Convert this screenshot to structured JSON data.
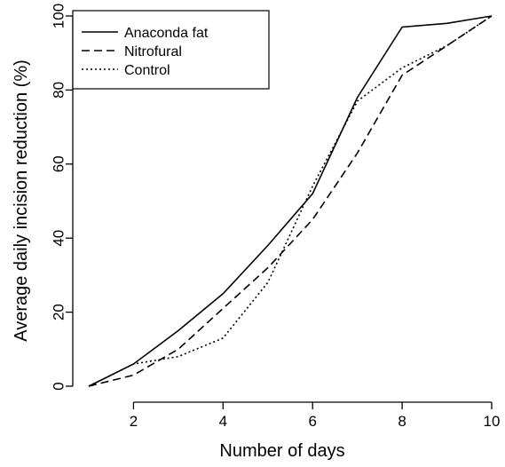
{
  "chart_data": {
    "type": "line",
    "xlabel": "Number of days",
    "ylabel": "Average daily incision reduction (%)",
    "xlim": [
      1,
      10
    ],
    "ylim": [
      0,
      100
    ],
    "x": [
      1,
      2,
      3,
      4,
      5,
      6,
      7,
      8,
      9,
      10
    ],
    "x_ticks": [
      "2",
      "4",
      "6",
      "8",
      "10"
    ],
    "y_ticks": [
      "0",
      "20",
      "40",
      "60",
      "80",
      "100"
    ],
    "grid": false,
    "legend_position": "top-left",
    "series": [
      {
        "name": "Anaconda fat",
        "style": "solid",
        "values": [
          0,
          6,
          15,
          25,
          38,
          52,
          78,
          97,
          98,
          100
        ]
      },
      {
        "name": "Nitrofural",
        "style": "dashed",
        "values": [
          0,
          3,
          10,
          21,
          32,
          45,
          63,
          84,
          92,
          100
        ]
      },
      {
        "name": "Control",
        "style": "dotted",
        "values": [
          0,
          6,
          8,
          13,
          28,
          54,
          77,
          86,
          92,
          100
        ]
      }
    ],
    "colors": {
      "lines": "#000000",
      "background": "#ffffff"
    }
  }
}
